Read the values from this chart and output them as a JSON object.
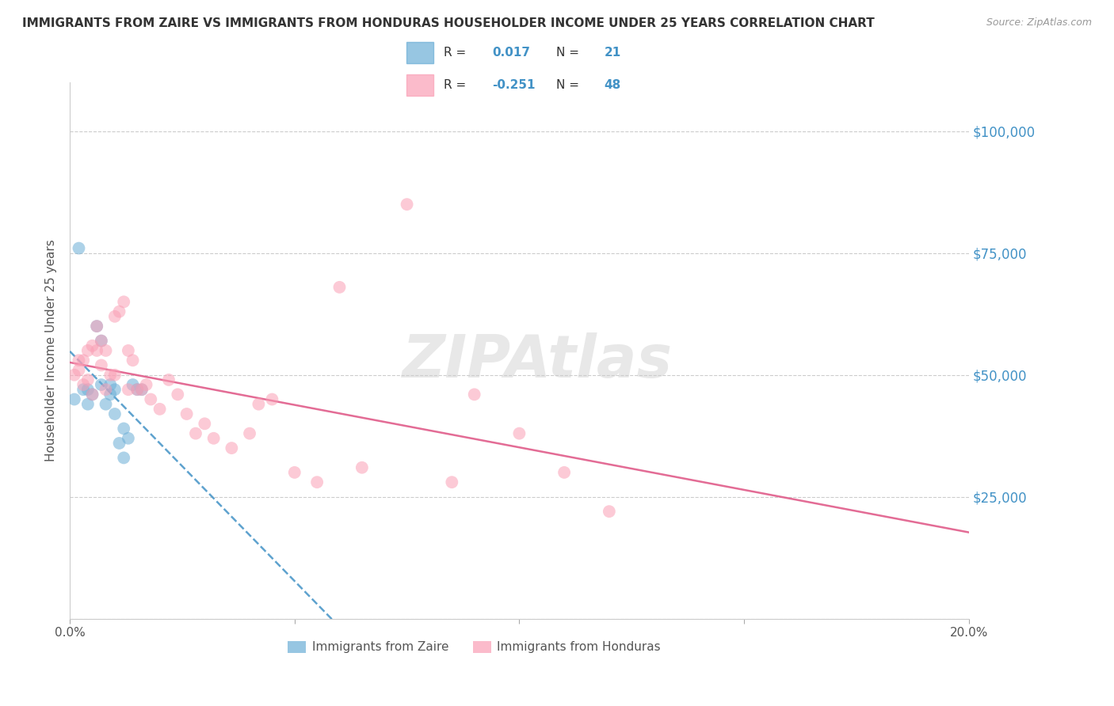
{
  "title": "IMMIGRANTS FROM ZAIRE VS IMMIGRANTS FROM HONDURAS HOUSEHOLDER INCOME UNDER 25 YEARS CORRELATION CHART",
  "source": "Source: ZipAtlas.com",
  "ylabel": "Householder Income Under 25 years",
  "xlim": [
    0.0,
    0.2
  ],
  "ylim": [
    0,
    110000
  ],
  "yticks": [
    0,
    25000,
    50000,
    75000,
    100000
  ],
  "ytick_labels": [
    "",
    "$25,000",
    "$50,000",
    "$75,000",
    "$100,000"
  ],
  "xticks": [
    0.0,
    0.05,
    0.1,
    0.15,
    0.2
  ],
  "xtick_labels": [
    "0.0%",
    "",
    "",
    "",
    "20.0%"
  ],
  "watermark": "ZIPAtlas",
  "legend_zaire_R": "0.017",
  "legend_zaire_N": "21",
  "legend_honduras_R": "-0.251",
  "legend_honduras_N": "48",
  "zaire_color": "#6baed6",
  "honduras_color": "#fa9fb5",
  "zaire_line_color": "#4292c6",
  "honduras_line_color": "#e05c8a",
  "zaire_x": [
    0.001,
    0.002,
    0.003,
    0.004,
    0.004,
    0.005,
    0.006,
    0.007,
    0.007,
    0.008,
    0.009,
    0.009,
    0.01,
    0.01,
    0.011,
    0.012,
    0.012,
    0.013,
    0.014,
    0.015,
    0.016
  ],
  "zaire_y": [
    45000,
    76000,
    47000,
    44000,
    47000,
    46000,
    60000,
    57000,
    48000,
    44000,
    46000,
    48000,
    42000,
    47000,
    36000,
    39000,
    33000,
    37000,
    48000,
    47000,
    47000
  ],
  "honduras_x": [
    0.001,
    0.002,
    0.002,
    0.003,
    0.003,
    0.004,
    0.004,
    0.005,
    0.005,
    0.006,
    0.006,
    0.007,
    0.007,
    0.008,
    0.008,
    0.009,
    0.01,
    0.01,
    0.011,
    0.012,
    0.013,
    0.013,
    0.014,
    0.015,
    0.016,
    0.017,
    0.018,
    0.02,
    0.022,
    0.024,
    0.026,
    0.028,
    0.03,
    0.032,
    0.036,
    0.04,
    0.042,
    0.045,
    0.05,
    0.055,
    0.06,
    0.065,
    0.075,
    0.085,
    0.09,
    0.1,
    0.11,
    0.12
  ],
  "honduras_y": [
    50000,
    51000,
    53000,
    48000,
    53000,
    55000,
    49000,
    46000,
    56000,
    60000,
    55000,
    57000,
    52000,
    55000,
    47000,
    50000,
    50000,
    62000,
    63000,
    65000,
    55000,
    47000,
    53000,
    47000,
    47000,
    48000,
    45000,
    43000,
    49000,
    46000,
    42000,
    38000,
    40000,
    37000,
    35000,
    38000,
    44000,
    45000,
    30000,
    28000,
    68000,
    31000,
    85000,
    28000,
    46000,
    38000,
    30000,
    22000
  ],
  "grid_color": "#cccccc",
  "bg_color": "#ffffff",
  "title_color": "#333333",
  "axis_label_color": "#555555",
  "tick_color_right": "#4292c6",
  "marker_size": 130,
  "marker_alpha": 0.55
}
